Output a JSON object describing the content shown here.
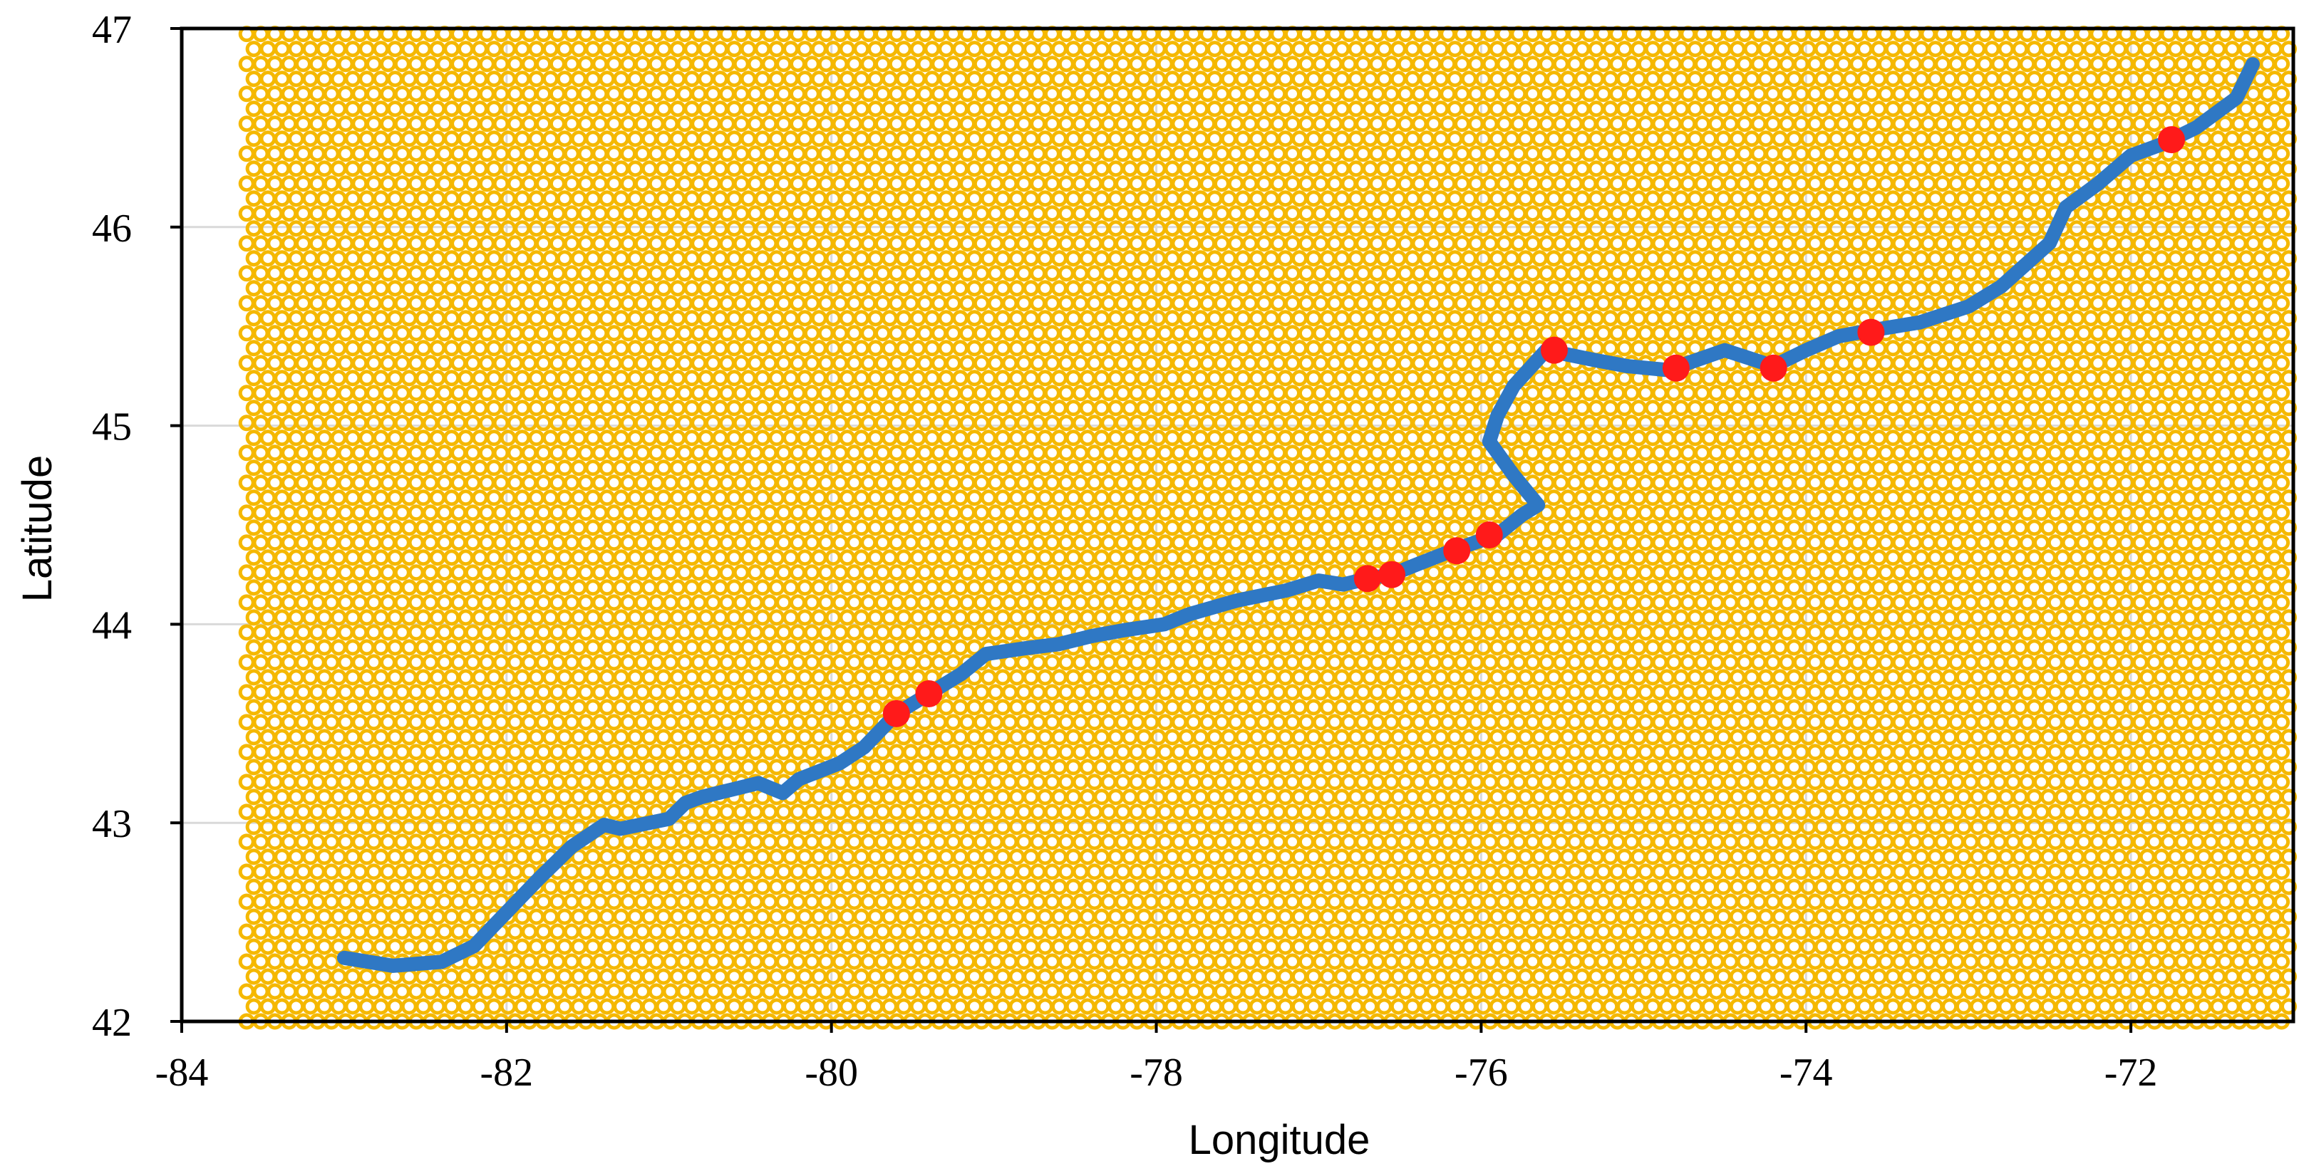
{
  "chart_data": {
    "type": "scatter",
    "xlabel": "Longitude",
    "ylabel": "Latitude",
    "xlim": [
      -84,
      -71
    ],
    "ylim": [
      42,
      47
    ],
    "x_ticks": [
      "-84",
      "-82",
      "-80",
      "-78",
      "-76",
      "-74",
      "-72"
    ],
    "y_ticks": [
      "42",
      "43",
      "44",
      "45",
      "46",
      "47"
    ],
    "grid": true,
    "legend": "none",
    "colors": {
      "grid_points": "#f5b800",
      "route": "#2f78c4",
      "stations": "#ff1a1a",
      "axes": "#000000",
      "gridlines": "#d9d9d9"
    },
    "grid_points": {
      "description_free_layout": true,
      "x_range": [
        -83.6,
        -71
      ],
      "y_range": [
        42,
        47
      ],
      "spacing": 0.087
    },
    "series": [
      {
        "type": "line",
        "x": [
          -83.0,
          -82.7,
          -82.4,
          -82.2,
          -82.0,
          -81.8,
          -81.6,
          -81.4,
          -81.3,
          -81.0,
          -80.9,
          -80.8,
          -80.6,
          -80.45,
          -80.3,
          -80.2,
          -79.95,
          -79.8,
          -79.6,
          -79.4,
          -79.2,
          -79.05,
          -78.8,
          -78.6,
          -78.4,
          -78.2,
          -77.95,
          -77.8,
          -77.5,
          -77.2,
          -77.0,
          -76.85,
          -76.7,
          -76.55,
          -76.4,
          -76.15,
          -75.9,
          -75.75,
          -75.65,
          -75.8,
          -75.95,
          -75.9,
          -75.8,
          -75.6,
          -75.3,
          -75.1,
          -74.85,
          -74.5,
          -74.2,
          -74.0,
          -73.8,
          -73.6,
          -73.3,
          -73.0,
          -72.8,
          -72.5,
          -72.4,
          -72.2,
          -72.0,
          -71.8,
          -71.6,
          -71.35,
          -71.25
        ],
        "y": [
          42.32,
          42.28,
          42.3,
          42.38,
          42.55,
          42.72,
          42.88,
          42.99,
          42.97,
          43.02,
          43.1,
          43.13,
          43.17,
          43.2,
          43.15,
          43.22,
          43.3,
          43.38,
          43.55,
          43.65,
          43.75,
          43.85,
          43.88,
          43.9,
          43.94,
          43.97,
          44.0,
          44.05,
          44.12,
          44.17,
          44.22,
          44.2,
          44.23,
          44.25,
          44.3,
          44.38,
          44.45,
          44.55,
          44.6,
          44.75,
          44.92,
          45.05,
          45.2,
          45.38,
          45.33,
          45.3,
          45.28,
          45.38,
          45.3,
          45.38,
          45.45,
          45.48,
          45.52,
          45.6,
          45.7,
          45.92,
          46.1,
          46.22,
          46.36,
          46.42,
          46.5,
          46.65,
          46.82
        ]
      },
      {
        "type": "scatter",
        "x": [
          -79.6,
          -79.4,
          -76.7,
          -76.55,
          -76.15,
          -75.95,
          -75.55,
          -74.8,
          -74.2,
          -73.6,
          -71.75
        ],
        "y": [
          43.55,
          43.65,
          44.23,
          44.25,
          44.37,
          44.45,
          45.38,
          45.29,
          45.29,
          45.47,
          46.44
        ]
      }
    ]
  }
}
